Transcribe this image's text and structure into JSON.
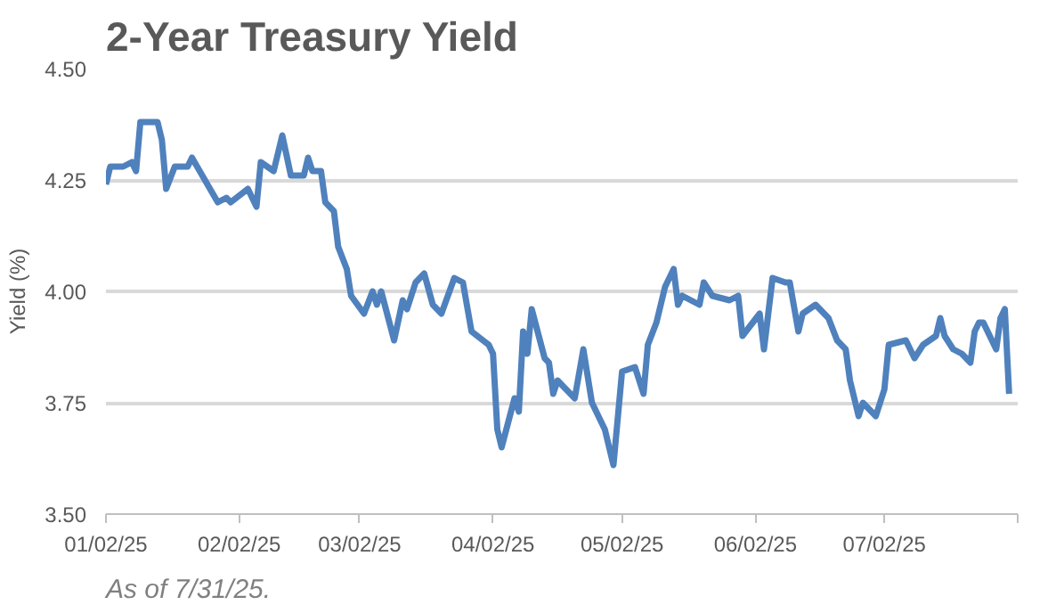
{
  "chart_data": {
    "type": "line",
    "title": "2-Year Treasury Yield",
    "ylabel": "Yield (%)",
    "annotations": [
      "As of 7/31/25."
    ],
    "x": [
      "2025-01-02",
      "2025-01-03",
      "2025-01-06",
      "2025-01-08",
      "2025-01-09",
      "2025-01-10",
      "2025-01-14",
      "2025-01-15",
      "2025-01-16",
      "2025-01-18",
      "2025-01-21",
      "2025-01-22",
      "2025-01-25",
      "2025-01-28",
      "2025-01-30",
      "2025-01-31",
      "2025-02-04",
      "2025-02-06",
      "2025-02-07",
      "2025-02-10",
      "2025-02-12",
      "2025-02-14",
      "2025-02-17",
      "2025-02-18",
      "2025-02-19",
      "2025-02-21",
      "2025-02-22",
      "2025-02-24",
      "2025-02-25",
      "2025-02-27",
      "2025-02-28",
      "2025-03-03",
      "2025-03-05",
      "2025-03-06",
      "2025-03-07",
      "2025-03-10",
      "2025-03-12",
      "2025-03-13",
      "2025-03-15",
      "2025-03-17",
      "2025-03-19",
      "2025-03-21",
      "2025-03-24",
      "2025-03-26",
      "2025-03-28",
      "2025-04-01",
      "2025-04-02",
      "2025-04-03",
      "2025-04-04",
      "2025-04-07",
      "2025-04-08",
      "2025-04-09",
      "2025-04-10",
      "2025-04-11",
      "2025-04-14",
      "2025-04-15",
      "2025-04-16",
      "2025-04-17",
      "2025-04-21",
      "2025-04-23",
      "2025-04-25",
      "2025-04-28",
      "2025-04-30",
      "2025-05-02",
      "2025-05-05",
      "2025-05-07",
      "2025-05-08",
      "2025-05-10",
      "2025-05-12",
      "2025-05-14",
      "2025-05-15",
      "2025-05-16",
      "2025-05-20",
      "2025-05-21",
      "2025-05-23",
      "2025-05-27",
      "2025-05-29",
      "2025-05-30",
      "2025-06-03",
      "2025-06-04",
      "2025-06-06",
      "2025-06-09",
      "2025-06-10",
      "2025-06-12",
      "2025-06-13",
      "2025-06-16",
      "2025-06-19",
      "2025-06-21",
      "2025-06-23",
      "2025-06-24",
      "2025-06-26",
      "2025-06-27",
      "2025-06-30",
      "2025-07-02",
      "2025-07-03",
      "2025-07-07",
      "2025-07-09",
      "2025-07-11",
      "2025-07-14",
      "2025-07-15",
      "2025-07-16",
      "2025-07-18",
      "2025-07-20",
      "2025-07-22",
      "2025-07-23",
      "2025-07-24",
      "2025-07-25",
      "2025-07-28",
      "2025-07-29",
      "2025-07-30",
      "2025-07-31"
    ],
    "series": [
      {
        "color": "#4f81bd",
        "values": [
          4.24,
          4.28,
          4.28,
          4.29,
          4.27,
          4.38,
          4.38,
          4.34,
          4.23,
          4.28,
          4.28,
          4.3,
          4.25,
          4.2,
          4.21,
          4.2,
          4.23,
          4.19,
          4.29,
          4.27,
          4.35,
          4.26,
          4.26,
          4.3,
          4.27,
          4.27,
          4.2,
          4.18,
          4.1,
          4.05,
          3.99,
          3.95,
          4.0,
          3.97,
          4.0,
          3.89,
          3.98,
          3.96,
          4.02,
          4.04,
          3.97,
          3.95,
          4.03,
          4.02,
          3.91,
          3.88,
          3.86,
          3.69,
          3.65,
          3.76,
          3.73,
          3.91,
          3.86,
          3.96,
          3.85,
          3.84,
          3.77,
          3.8,
          3.76,
          3.87,
          3.75,
          3.69,
          3.61,
          3.82,
          3.83,
          3.77,
          3.88,
          3.93,
          4.01,
          4.05,
          3.97,
          3.99,
          3.97,
          4.02,
          3.99,
          3.98,
          3.99,
          3.9,
          3.95,
          3.87,
          4.03,
          4.02,
          4.02,
          3.91,
          3.95,
          3.97,
          3.94,
          3.89,
          3.87,
          3.8,
          3.72,
          3.75,
          3.72,
          3.78,
          3.88,
          3.89,
          3.85,
          3.88,
          3.9,
          3.94,
          3.9,
          3.87,
          3.86,
          3.84,
          3.91,
          3.93,
          3.93,
          3.87,
          3.94,
          3.96,
          3.77
        ]
      }
    ],
    "xlim": [
      "2025-01-02",
      "2025-08-02"
    ],
    "xticks": [
      {
        "value": "2025-01-02",
        "label": "01/02/25"
      },
      {
        "value": "2025-02-02",
        "label": "02/02/25"
      },
      {
        "value": "2025-03-02",
        "label": "03/02/25"
      },
      {
        "value": "2025-04-02",
        "label": "04/02/25"
      },
      {
        "value": "2025-05-02",
        "label": "05/02/25"
      },
      {
        "value": "2025-06-02",
        "label": "06/02/25"
      },
      {
        "value": "2025-07-02",
        "label": "07/02/25"
      },
      {
        "value": "2025-08-02",
        "label": null
      }
    ],
    "ylim": [
      3.5,
      4.5
    ],
    "yticks": [
      {
        "value": 3.5,
        "label": "3.50"
      },
      {
        "value": 3.75,
        "label": "3.75"
      },
      {
        "value": 4.0,
        "label": "4.00"
      },
      {
        "value": 4.25,
        "label": "4.25"
      },
      {
        "value": 4.5,
        "label": "4.50"
      }
    ],
    "grid": "y",
    "marker": "none",
    "line_style": "solid"
  }
}
